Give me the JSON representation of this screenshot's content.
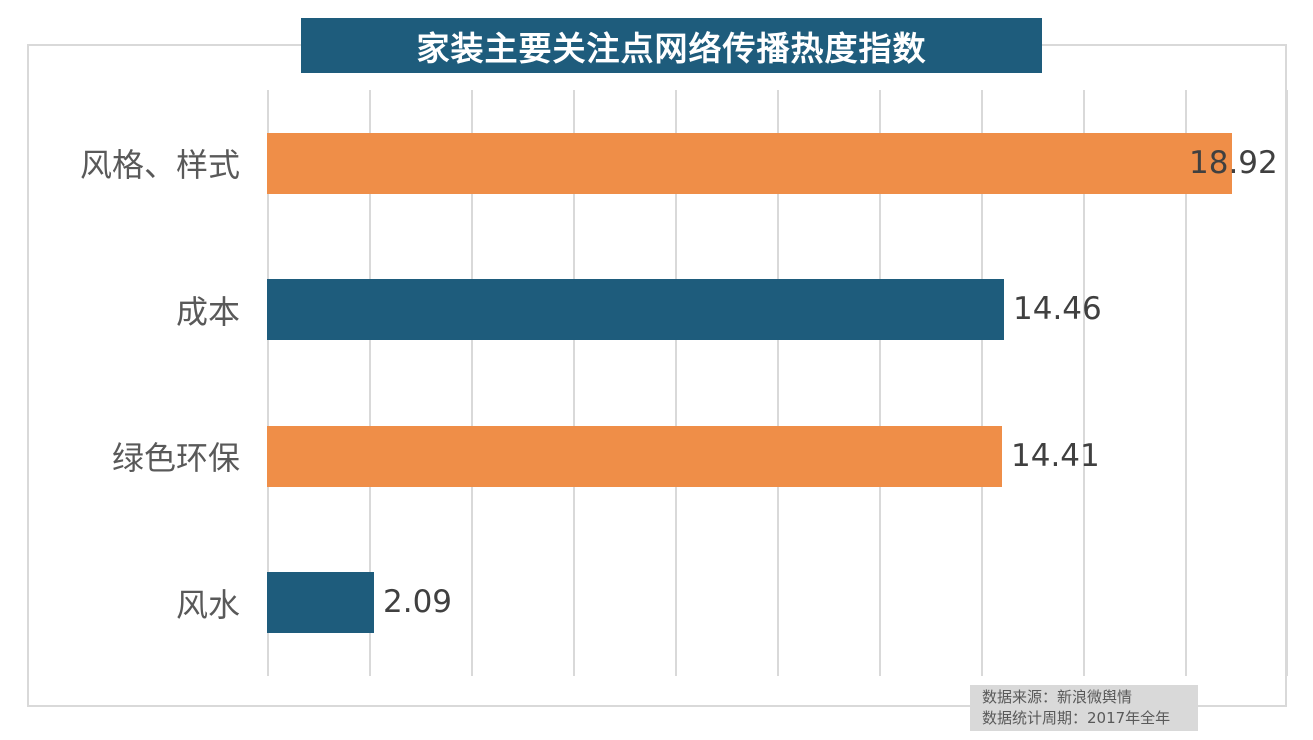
{
  "title": "家装主要关注点网络传播热度指数",
  "chart_data": {
    "type": "bar",
    "orientation": "horizontal",
    "title": "家装主要关注点网络传播热度指数",
    "categories": [
      "风格、样式",
      "成本",
      "绿色环保",
      "风水"
    ],
    "values": [
      18.92,
      14.46,
      14.41,
      2.09
    ],
    "value_labels": [
      "18.92",
      "14.46",
      "14.41",
      "2.09"
    ],
    "xlim": [
      0,
      20
    ],
    "gridline_interval": 2,
    "grid": true,
    "legend": "none",
    "bar_colors": [
      "#EF8E48",
      "#1E5C7C",
      "#EF8E48",
      "#1E5C7C"
    ]
  },
  "colors": {
    "orange": "#EF8E48",
    "teal": "#1E5C7C",
    "banner_bg": "#1E5C7C",
    "banner_text": "#FFFFFF",
    "gridline": "#D9D9D9",
    "frame_border": "#D9D9D9",
    "category_text": "#595959",
    "value_text": "#404040",
    "source_bg": "#D9D9D9",
    "source_text": "#595959"
  },
  "source": {
    "line1": "数据来源：新浪微舆情",
    "line2": "数据统计周期：2017年全年"
  }
}
